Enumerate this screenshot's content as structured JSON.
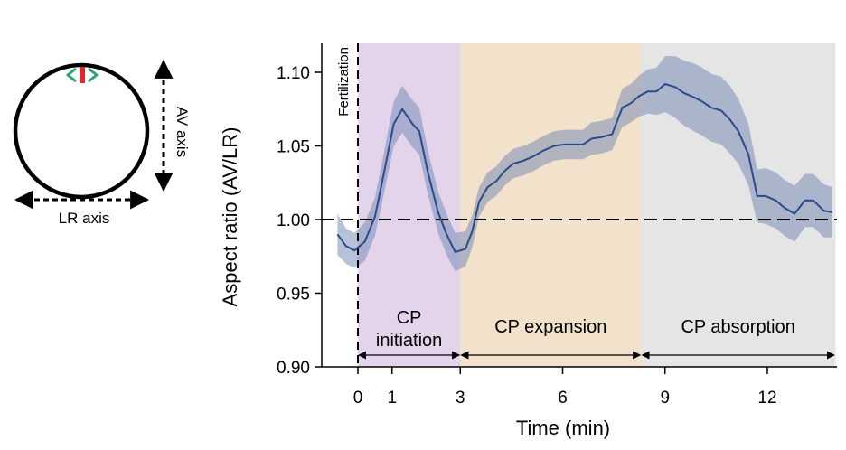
{
  "schematic": {
    "av_axis_label": "AV axis",
    "lr_axis_label": "LR axis",
    "colors": {
      "cell_outline": "#000000",
      "marker_green": "#2ea37a",
      "marker_red": "#d32f2f"
    }
  },
  "chart_data": {
    "type": "line",
    "title": "",
    "xlabel": "Time (min)",
    "ylabel": "Aspect ratio (AV/LR)",
    "xlim": [
      -0.6,
      14
    ],
    "ylim": [
      0.9,
      1.12
    ],
    "xticks": [
      0,
      1,
      3,
      6,
      9,
      12
    ],
    "xtick_labels": [
      "0",
      "1",
      "3",
      "6",
      "9",
      "12"
    ],
    "yticks": [
      0.9,
      0.95,
      1.0,
      1.05,
      1.1
    ],
    "ytick_labels": [
      "0.90",
      "0.95",
      "1.00",
      "1.05",
      "1.10"
    ],
    "reference_line": {
      "y": 1.0,
      "style": "dashed"
    },
    "event_line": {
      "x": 0,
      "label": "Fertilization",
      "style": "dashed"
    },
    "phases": [
      {
        "name": "CP\ninitiation",
        "label_lines": [
          "CP",
          "initiation"
        ],
        "start": 0,
        "end": 3,
        "color": "#e3d4ec"
      },
      {
        "name": "CP expansion",
        "label_lines": [
          "CP expansion"
        ],
        "start": 3,
        "end": 8.3,
        "color": "#f2e2cb"
      },
      {
        "name": "CP absorption",
        "label_lines": [
          "CP absorption"
        ],
        "start": 8.3,
        "end": 14,
        "color": "#e5e5e5"
      }
    ],
    "series": [
      {
        "name": "Aspect ratio",
        "color": "#2b4a88",
        "band_color": "#6f86b1",
        "x": [
          -0.6,
          -0.35,
          -0.1,
          0.2,
          0.5,
          0.75,
          1.05,
          1.3,
          1.6,
          1.8,
          2.05,
          2.35,
          2.6,
          2.85,
          3.15,
          3.35,
          3.55,
          3.8,
          4.05,
          4.3,
          4.55,
          4.85,
          5.15,
          5.45,
          5.75,
          6.05,
          6.3,
          6.6,
          6.85,
          7.15,
          7.45,
          7.75,
          8.0,
          8.25,
          8.5,
          8.75,
          9.0,
          9.3,
          9.55,
          9.85,
          10.1,
          10.35,
          10.65,
          10.9,
          11.15,
          11.45,
          11.7,
          11.95,
          12.25,
          12.5,
          12.8,
          13.1,
          13.35,
          13.65,
          13.9
        ],
        "values": [
          0.99,
          0.982,
          0.979,
          0.985,
          1.002,
          1.03,
          1.065,
          1.075,
          1.065,
          1.06,
          1.032,
          1.005,
          0.99,
          0.978,
          0.98,
          0.992,
          1.012,
          1.022,
          1.026,
          1.033,
          1.038,
          1.04,
          1.043,
          1.047,
          1.05,
          1.051,
          1.051,
          1.051,
          1.055,
          1.056,
          1.058,
          1.076,
          1.079,
          1.084,
          1.087,
          1.087,
          1.092,
          1.09,
          1.086,
          1.083,
          1.08,
          1.076,
          1.074,
          1.068,
          1.06,
          1.044,
          1.016,
          1.016,
          1.013,
          1.008,
          1.004,
          1.013,
          1.013,
          1.006,
          1.005
        ],
        "lower": [
          0.976,
          0.97,
          0.967,
          0.972,
          0.989,
          1.016,
          1.05,
          1.059,
          1.049,
          1.044,
          1.017,
          0.991,
          0.976,
          0.965,
          0.968,
          0.981,
          1.002,
          1.012,
          1.016,
          1.023,
          1.028,
          1.03,
          1.033,
          1.037,
          1.04,
          1.041,
          1.041,
          1.041,
          1.044,
          1.045,
          1.047,
          1.063,
          1.066,
          1.07,
          1.072,
          1.071,
          1.073,
          1.069,
          1.064,
          1.06,
          1.057,
          1.053,
          1.051,
          1.045,
          1.038,
          1.023,
          0.998,
          0.997,
          0.994,
          0.989,
          0.985,
          0.995,
          0.995,
          0.988,
          0.988
        ],
        "upper": [
          1.004,
          0.994,
          0.991,
          0.998,
          1.015,
          1.044,
          1.08,
          1.091,
          1.081,
          1.076,
          1.047,
          1.019,
          1.004,
          0.991,
          0.992,
          1.003,
          1.022,
          1.032,
          1.036,
          1.043,
          1.048,
          1.05,
          1.053,
          1.057,
          1.06,
          1.061,
          1.061,
          1.061,
          1.066,
          1.067,
          1.069,
          1.089,
          1.092,
          1.098,
          1.102,
          1.103,
          1.111,
          1.111,
          1.108,
          1.106,
          1.103,
          1.099,
          1.097,
          1.091,
          1.082,
          1.065,
          1.034,
          1.035,
          1.032,
          1.027,
          1.023,
          1.031,
          1.031,
          1.024,
          1.022
        ]
      }
    ],
    "annotations": [
      "Fertilization"
    ]
  }
}
